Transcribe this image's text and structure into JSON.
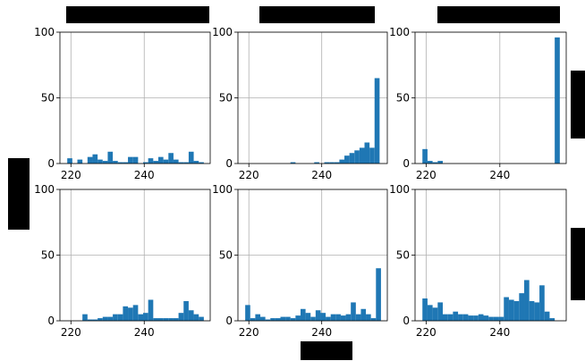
{
  "chart_data": {
    "type": "bar",
    "layout": "2x3 grid of histograms",
    "grid": true,
    "bar_color": "#1f77b4",
    "xlim": [
      217,
      258
    ],
    "ylim": [
      0,
      100
    ],
    "xticks": [
      220,
      240
    ],
    "yticks": [
      0,
      50,
      100
    ],
    "bin_width": 1.38,
    "panels": [
      {
        "bins": [
          219,
          220.38,
          221.76,
          223.14,
          224.52,
          225.9,
          227.28,
          228.66,
          230.04,
          231.42,
          232.8,
          234.18,
          235.56,
          236.94,
          238.32,
          239.7,
          241.08,
          242.46,
          243.84,
          245.22,
          246.6,
          247.98,
          249.36,
          250.74,
          252.12,
          253.5,
          254.88
        ],
        "values": [
          4,
          0,
          3,
          0,
          5,
          7,
          3,
          2,
          9,
          2,
          1,
          1,
          5,
          5,
          0,
          1,
          4,
          2,
          5,
          3,
          8,
          3,
          1,
          1,
          9,
          2,
          1
        ]
      },
      {
        "bins": [
          231.42,
          237.94,
          240.7,
          242.08,
          243.46,
          244.84,
          246.22,
          247.6,
          248.98,
          250.36,
          251.74,
          253.12,
          254.5
        ],
        "values": [
          1,
          1,
          1,
          1,
          1,
          3,
          6,
          8,
          10,
          12,
          16,
          12,
          65
        ]
      },
      {
        "bins": [
          219,
          220.38,
          221.76,
          223.14,
          254.88
        ],
        "values": [
          11,
          2,
          1,
          2,
          96
        ]
      },
      {
        "bins": [
          223.14,
          224.52,
          225.9,
          227.28,
          228.66,
          230.04,
          231.42,
          232.8,
          234.18,
          235.56,
          236.94,
          238.32,
          239.7,
          241.08,
          242.46,
          243.84,
          245.22,
          246.6,
          247.98,
          249.36,
          250.74,
          252.12,
          253.5,
          254.88
        ],
        "values": [
          5,
          1,
          1,
          2,
          3,
          3,
          5,
          5,
          11,
          10,
          12,
          5,
          6,
          16,
          2,
          2,
          2,
          2,
          2,
          6,
          15,
          8,
          5,
          3
        ]
      },
      {
        "bins": [
          219,
          220.38,
          221.76,
          223.14,
          224.52,
          225.9,
          227.28,
          228.66,
          230.04,
          231.42,
          232.8,
          234.18,
          235.56,
          236.94,
          238.32,
          239.7,
          241.08,
          242.46,
          243.84,
          245.22,
          246.6,
          247.98,
          249.36,
          250.74,
          252.12,
          253.5,
          254.88
        ],
        "values": [
          12,
          2,
          5,
          3,
          1,
          2,
          2,
          3,
          3,
          2,
          4,
          9,
          6,
          3,
          8,
          6,
          3,
          5,
          5,
          4,
          5,
          14,
          5,
          9,
          5,
          2,
          40
        ]
      },
      {
        "bins": [
          219,
          220.38,
          221.76,
          223.14,
          224.52,
          225.9,
          227.28,
          228.66,
          230.04,
          231.42,
          232.8,
          234.18,
          235.56,
          236.94,
          238.32,
          239.7,
          241.08,
          242.46,
          243.84,
          245.22,
          246.6,
          247.98,
          249.36,
          250.74,
          252.12,
          253.5
        ],
        "values": [
          17,
          12,
          10,
          14,
          5,
          5,
          7,
          5,
          5,
          4,
          4,
          5,
          4,
          3,
          3,
          3,
          18,
          16,
          15,
          21,
          31,
          15,
          14,
          27,
          7,
          2
        ]
      }
    ]
  }
}
